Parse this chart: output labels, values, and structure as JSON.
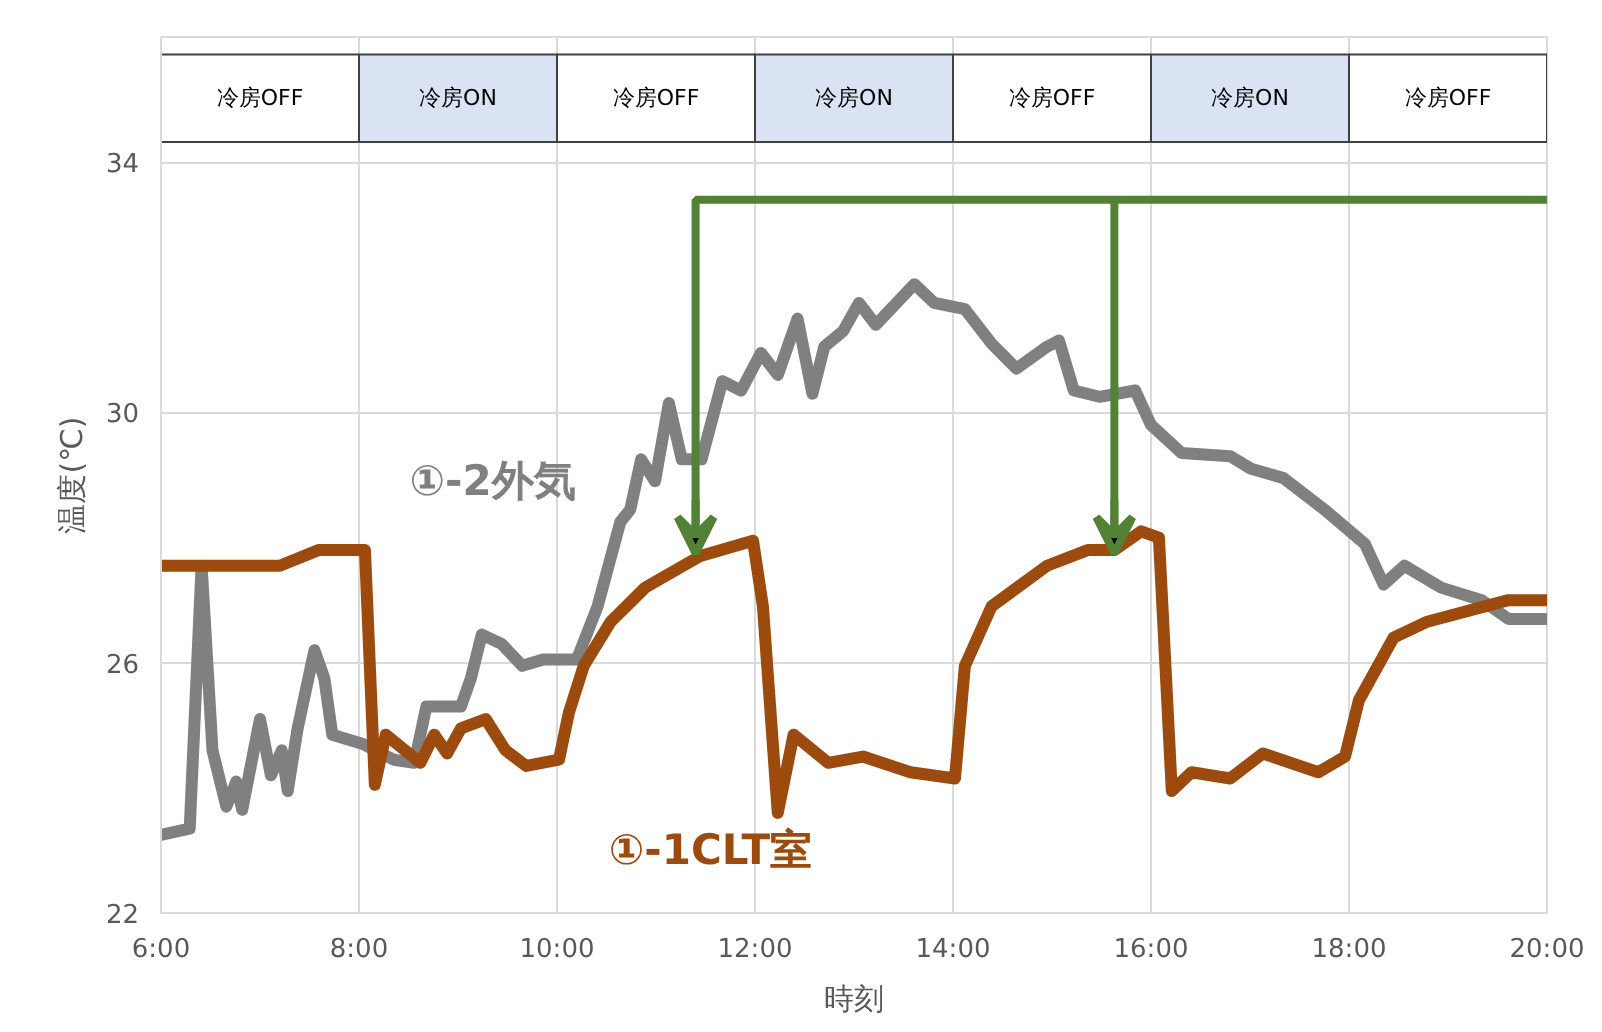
{
  "chart_data": {
    "type": "line",
    "xlabel": "時刻",
    "ylabel": "温度(℃)",
    "xlim": [
      6,
      20
    ],
    "ylim": [
      22,
      36
    ],
    "xticks": [
      {
        "value": 6,
        "label": "6:00"
      },
      {
        "value": 8,
        "label": "8:00"
      },
      {
        "value": 10,
        "label": "10:00"
      },
      {
        "value": 12,
        "label": "12:00"
      },
      {
        "value": 14,
        "label": "14:00"
      },
      {
        "value": 16,
        "label": "16:00"
      },
      {
        "value": 18,
        "label": "18:00"
      },
      {
        "value": 20,
        "label": "20:00"
      }
    ],
    "yticks": [
      22,
      26,
      30,
      34
    ],
    "grid": true,
    "legend": false,
    "marker": "none",
    "line_style": "solid",
    "bands": [
      {
        "axis": "x",
        "from": 6,
        "to": 8,
        "label": "冷房OFF",
        "color": "#ffffff"
      },
      {
        "axis": "x",
        "from": 8,
        "to": 10,
        "label": "冷房ON",
        "color": "#dae3f3"
      },
      {
        "axis": "x",
        "from": 10,
        "to": 12,
        "label": "冷房OFF",
        "color": "#ffffff"
      },
      {
        "axis": "x",
        "from": 12,
        "to": 14,
        "label": "冷房ON",
        "color": "#dae3f3"
      },
      {
        "axis": "x",
        "from": 14,
        "to": 16,
        "label": "冷房OFF",
        "color": "#ffffff"
      },
      {
        "axis": "x",
        "from": 16,
        "to": 18,
        "label": "冷房ON",
        "color": "#dae3f3"
      },
      {
        "axis": "x",
        "from": 18,
        "to": 20,
        "label": "冷房OFF",
        "color": "#ffffff"
      }
    ],
    "series": [
      {
        "name": "①-2外気",
        "color": "#808080",
        "x": [
          6.0,
          6.29,
          6.41,
          6.52,
          6.66,
          6.76,
          6.82,
          7.0,
          7.11,
          7.22,
          7.28,
          7.38,
          7.55,
          7.65,
          7.73,
          8.04,
          8.16,
          8.35,
          8.56,
          8.68,
          9.03,
          9.13,
          9.24,
          9.44,
          9.65,
          9.86,
          10.2,
          10.41,
          10.64,
          10.74,
          10.85,
          10.99,
          11.13,
          11.26,
          11.46,
          11.67,
          11.86,
          12.06,
          12.23,
          12.43,
          12.58,
          12.7,
          12.89,
          13.05,
          13.22,
          13.61,
          13.81,
          14.12,
          14.39,
          14.64,
          14.95,
          15.07,
          15.22,
          15.48,
          15.84,
          16.0,
          16.31,
          16.8,
          17.01,
          17.34,
          17.75,
          18.16,
          18.35,
          18.56,
          18.93,
          19.34,
          19.61,
          20.0
        ],
        "values": [
          23.25,
          23.35,
          27.55,
          24.6,
          23.7,
          24.1,
          23.65,
          25.1,
          24.2,
          24.6,
          23.95,
          24.95,
          26.2,
          25.75,
          24.85,
          24.7,
          24.6,
          24.45,
          24.4,
          25.3,
          25.3,
          25.75,
          26.45,
          26.3,
          25.95,
          26.05,
          26.05,
          26.9,
          28.25,
          28.45,
          29.25,
          28.9,
          30.15,
          29.25,
          29.25,
          30.5,
          30.35,
          30.95,
          30.6,
          31.5,
          30.3,
          31.05,
          31.3,
          31.75,
          31.4,
          32.05,
          31.75,
          31.65,
          31.1,
          30.7,
          31.05,
          31.15,
          30.35,
          30.25,
          30.35,
          29.8,
          29.35,
          29.3,
          29.1,
          28.95,
          28.45,
          27.9,
          27.25,
          27.55,
          27.2,
          27.0,
          26.7,
          26.7
        ]
      },
      {
        "name": "①-1CLT室",
        "color": "#9c4a0e",
        "x": [
          6.0,
          7.2,
          7.59,
          8.06,
          8.16,
          8.27,
          8.62,
          8.76,
          8.89,
          9.03,
          9.28,
          9.48,
          9.69,
          10.02,
          10.12,
          10.27,
          10.54,
          10.89,
          11.44,
          11.98,
          12.08,
          12.23,
          12.39,
          12.74,
          13.09,
          13.57,
          14.02,
          14.12,
          14.39,
          14.95,
          15.36,
          15.63,
          15.9,
          16.08,
          16.21,
          16.41,
          16.8,
          17.13,
          17.69,
          17.96,
          18.1,
          18.45,
          18.78,
          19.61,
          20.0
        ],
        "values": [
          27.55,
          27.55,
          27.8,
          27.8,
          24.05,
          24.85,
          24.4,
          24.85,
          24.55,
          24.95,
          25.1,
          24.6,
          24.35,
          24.45,
          25.2,
          25.95,
          26.65,
          27.2,
          27.7,
          27.95,
          26.9,
          23.6,
          24.85,
          24.4,
          24.5,
          24.25,
          24.15,
          25.95,
          26.9,
          27.55,
          27.8,
          27.8,
          28.1,
          28.0,
          23.95,
          24.25,
          24.15,
          24.55,
          24.25,
          24.5,
          25.4,
          26.4,
          26.65,
          27.0,
          27.0
        ]
      }
    ]
  }
}
